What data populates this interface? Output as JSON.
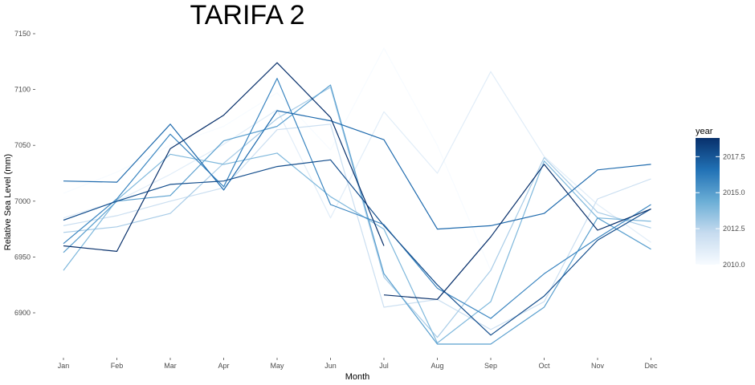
{
  "chart_data": {
    "type": "line",
    "title": "TARIFA 2",
    "xlabel": "Month",
    "ylabel": "Relative Sea Level (mm)",
    "categories": [
      "Jan",
      "Feb",
      "Mar",
      "Apr",
      "May",
      "Jun",
      "Jul",
      "Aug",
      "Sep",
      "Oct",
      "Nov",
      "Dec"
    ],
    "ylim": [
      6875,
      7155
    ],
    "yticks": [
      6900,
      6950,
      7000,
      7050,
      7100,
      7150
    ],
    "ytick_labels": [
      "6900",
      "6950",
      "7000",
      "7050",
      "7100",
      "7150"
    ],
    "grid": false,
    "legend": {
      "title": "year",
      "placement": "right",
      "range": [
        2010,
        2019
      ],
      "ticks": [
        2010.0,
        2012.5,
        2015.0,
        2017.5
      ],
      "tick_labels": [
        "2010.0",
        "2012.5",
        "2015.0",
        "2017.5"
      ],
      "color_low": "#f7fbff",
      "color_high": "#08306b"
    },
    "series": [
      {
        "year": 2010,
        "values": [
          7007,
          7026,
          7050,
          7067,
          7097,
          7046,
          7137,
          7050,
          6938,
          null,
          null,
          null
        ]
      },
      {
        "year": 2011,
        "values": [
          6985,
          7000,
          7024,
          7051,
          7082,
          6985,
          7080,
          7025,
          7116,
          7040,
          6997,
          6963
        ]
      },
      {
        "year": 2012,
        "values": [
          6978,
          6987,
          7000,
          7012,
          7064,
          7069,
          6905,
          6912,
          6885,
          6910,
          7002,
          7020
        ]
      },
      {
        "year": 2013,
        "values": [
          6972,
          6977,
          6989,
          7034,
          7074,
          7102,
          6932,
          6878,
          6938,
          7039,
          6990,
          6976
        ]
      },
      {
        "year": 2014,
        "values": [
          6938,
          7001,
          7042,
          7033,
          7043,
          7004,
          6975,
          6873,
          6910,
          7036,
          6985,
          6982
        ]
      },
      {
        "year": 2015,
        "values": [
          6954,
          7000,
          7005,
          7054,
          7067,
          7104,
          6935,
          6872,
          6872,
          6905,
          6985,
          6957
        ]
      },
      {
        "year": 2016,
        "values": [
          6962,
          7002,
          7060,
          7013,
          7110,
          6997,
          6979,
          6922,
          6895,
          6935,
          6967,
          6997
        ]
      },
      {
        "year": 2017,
        "values": [
          7018,
          7017,
          7069,
          7010,
          7081,
          7072,
          7055,
          6975,
          6978,
          6989,
          7028,
          7033
        ]
      },
      {
        "year": 2018,
        "values": [
          6983,
          7000,
          7015,
          7018,
          7031,
          7037,
          6978,
          6925,
          6880,
          6915,
          6965,
          6993
        ]
      },
      {
        "year": 2019,
        "values": [
          6960,
          6955,
          7047,
          7077,
          7124,
          7075,
          6960,
          null,
          null,
          null,
          null,
          null
        ]
      },
      {
        "year": 2019,
        "values": [
          null,
          null,
          null,
          null,
          null,
          null,
          6916,
          6912,
          6968,
          7033,
          6974,
          6993
        ]
      }
    ]
  }
}
